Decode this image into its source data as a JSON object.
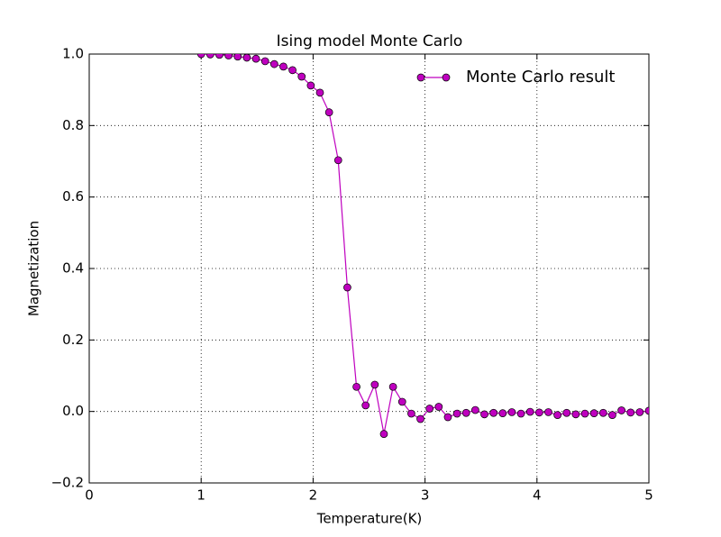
{
  "chart_data": {
    "type": "line",
    "title": "Ising model Monte Carlo",
    "xlabel": "Temperature(K)",
    "ylabel": "Magnetization",
    "x": [
      1,
      1.0816,
      1.1633,
      1.2449,
      1.3265,
      1.4082,
      1.4898,
      1.5714,
      1.6531,
      1.7347,
      1.8163,
      1.898,
      1.9796,
      2.0612,
      2.1429,
      2.2245,
      2.3061,
      2.3878,
      2.4694,
      2.551,
      2.6327,
      2.7143,
      2.7959,
      2.8776,
      2.9592,
      3.0408,
      3.1224,
      3.2041,
      3.2857,
      3.3673,
      3.449,
      3.5306,
      3.6122,
      3.6939,
      3.7755,
      3.8571,
      3.9388,
      4.0204,
      4.102,
      4.1837,
      4.2653,
      4.3469,
      4.4286,
      4.5102,
      4.5918,
      4.6735,
      4.7551,
      4.8367,
      4.9184,
      5
    ],
    "series": [
      {
        "name": "Monte Carlo result",
        "color": "#bf00bf",
        "values": [
          1.0,
          0.999,
          0.998,
          0.996,
          0.993,
          0.99,
          0.987,
          0.98,
          0.972,
          0.965,
          0.955,
          0.937,
          0.912,
          0.892,
          0.837,
          0.703,
          0.347,
          0.069,
          0.017,
          0.075,
          -0.063,
          0.069,
          0.027,
          -0.006,
          -0.021,
          0.008,
          0.013,
          -0.016,
          -0.006,
          -0.004,
          0.004,
          -0.008,
          -0.004,
          -0.005,
          -0.002,
          -0.006,
          -0.001,
          -0.003,
          -0.002,
          -0.01,
          -0.004,
          -0.008,
          -0.006,
          -0.005,
          -0.004,
          -0.01,
          0.003,
          -0.003,
          -0.002,
          0.002
        ]
      }
    ],
    "xlim": [
      0,
      5
    ],
    "xticks": [
      0,
      1,
      2,
      3,
      4,
      5
    ],
    "ylim": [
      -0.2,
      1.0
    ],
    "yticks": [
      {
        "value": -0.2,
        "label": "−0.2"
      },
      {
        "value": 0.0,
        "label": "0.0"
      },
      {
        "value": 0.2,
        "label": "0.2"
      },
      {
        "value": 0.4,
        "label": "0.4"
      },
      {
        "value": 0.6,
        "label": "0.6"
      },
      {
        "value": 0.8,
        "label": "0.8"
      },
      {
        "value": 1.0,
        "label": "1.0"
      }
    ],
    "grid": true,
    "legend": "upper right"
  }
}
